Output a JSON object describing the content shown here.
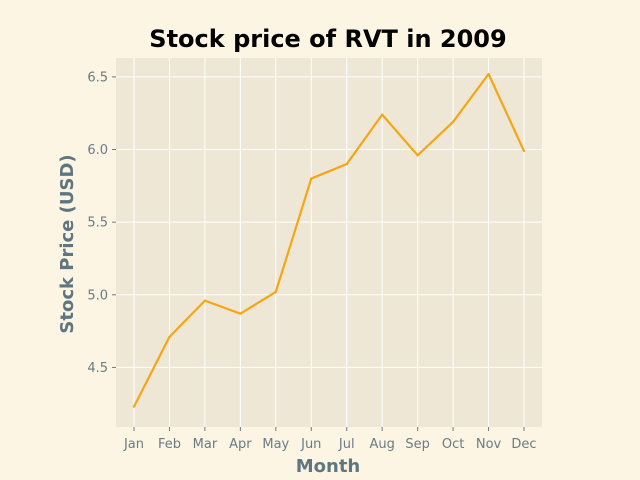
{
  "chart_data": {
    "type": "line",
    "title": "Stock price of RVT in 2009",
    "xlabel": "Month",
    "ylabel": "Stock Price (USD)",
    "categories": [
      "Jan",
      "Feb",
      "Mar",
      "Apr",
      "May",
      "Jun",
      "Jul",
      "Aug",
      "Sep",
      "Oct",
      "Nov",
      "Dec"
    ],
    "series": [
      {
        "values": [
          4.23,
          4.71,
          4.96,
          4.87,
          5.02,
          5.8,
          5.9,
          6.24,
          5.96,
          6.19,
          6.52,
          5.99
        ]
      }
    ],
    "ylim": [
      4.09,
      6.63
    ],
    "yticks": [
      4.5,
      5.0,
      5.5,
      6.0,
      6.5
    ],
    "ytick_labels": [
      "4.5",
      "5.0",
      "5.5",
      "6.0",
      "6.5"
    ],
    "grid": true,
    "legend": "none",
    "colors": {
      "line": "#f5a614",
      "plot_background": "#efe7d5",
      "page_background": "#fcf5e3",
      "grid": "#ffffff",
      "axis_label": "#5f7580",
      "tick_label": "#6b7b85"
    }
  }
}
